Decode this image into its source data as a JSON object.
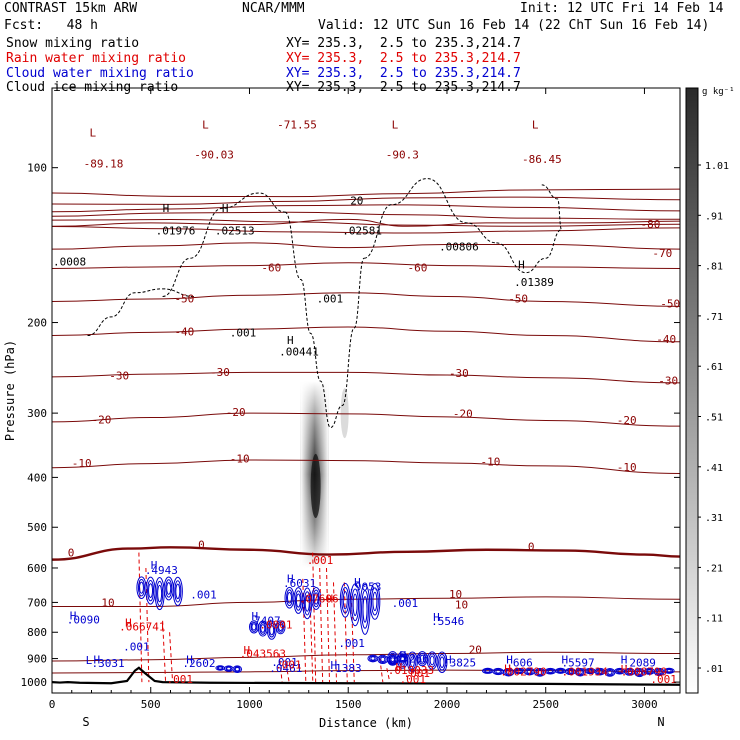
{
  "header": {
    "model": "CONTRAST 15km ARW",
    "org": "NCAR/MMM",
    "init": "Init: 12 UTC Fri 14 Feb 14",
    "fcst": "Fcst:   48 h",
    "valid": "Valid: 12 UTC Sun 16 Feb 14 (22 ChT Sun 16 Feb 14)"
  },
  "fields": [
    {
      "name": "Snow mixing ratio",
      "xy": "XY= 235.3,  2.5 to 235.3,214.7",
      "color": "#000000"
    },
    {
      "name": "Rain water mixing ratio",
      "xy": "XY= 235.3,  2.5 to 235.3,214.7",
      "color": "#e00000"
    },
    {
      "name": "Cloud water mixing ratio",
      "xy": "XY= 235.3,  2.5 to 235.3,214.7",
      "color": "#0000d0"
    },
    {
      "name": "Cloud ice mixing ratio",
      "xy": "XY= 235.3,  2.5 to 235.3,214.7",
      "color": "#000000"
    }
  ],
  "chart_data": {
    "type": "cross-section",
    "xlabel": "Distance (km)",
    "ylabel": "Pressure (hPa)",
    "xlim": [
      0,
      3180
    ],
    "ylim": [
      1050,
      70
    ],
    "xticks": [
      0,
      500,
      1000,
      1500,
      2000,
      2500,
      3000
    ],
    "yticks": [
      100,
      200,
      300,
      400,
      500,
      600,
      700,
      800,
      900,
      1000
    ],
    "endpoints": {
      "left": "S",
      "right": "N"
    },
    "colorbar": {
      "unit": "g kg⁻¹",
      "labels": [
        "1.01",
        ".91",
        ".81",
        ".71",
        ".61",
        ".51",
        ".41",
        ".31",
        ".21",
        ".11",
        ".01"
      ]
    },
    "isotherms": [
      {
        "label": "-80",
        "x": [
          0,
          500,
          1000,
          1500,
          1800,
          2200,
          2700,
          3180
        ],
        "p": [
          130,
          128,
          129,
          126,
          130,
          128,
          128,
          127
        ]
      },
      {
        "label": "-70",
        "x": [
          0,
          500,
          1000,
          1500,
          2000,
          2500,
          3180
        ],
        "p": [
          144,
          142,
          140,
          143,
          141,
          141,
          144
        ]
      },
      {
        "label": "-60",
        "x": [
          0,
          500,
          1000,
          1500,
          2000,
          2500,
          3180
        ],
        "p": [
          157,
          156,
          155,
          153,
          155,
          156,
          157
        ]
      },
      {
        "label": "-50",
        "x": [
          0,
          500,
          1000,
          1500,
          2000,
          2500,
          3180
        ],
        "p": [
          182,
          180,
          177,
          175,
          178,
          182,
          186
        ]
      },
      {
        "label": "-40",
        "x": [
          0,
          500,
          1000,
          1500,
          2000,
          2500,
          3180
        ],
        "p": [
          212,
          209,
          206,
          204,
          208,
          212,
          218
        ]
      },
      {
        "label": "-30",
        "x": [
          0,
          500,
          1000,
          1500,
          2000,
          2500,
          3180
        ],
        "p": [
          255,
          252,
          250,
          250,
          253,
          256,
          262
        ]
      },
      {
        "label": "-20",
        "x": [
          0,
          500,
          1000,
          1500,
          2000,
          2500,
          3180
        ],
        "p": [
          312,
          306,
          300,
          301,
          305,
          310,
          318
        ]
      },
      {
        "label": "-10",
        "x": [
          0,
          500,
          1000,
          1500,
          2000,
          2500,
          3180
        ],
        "p": [
          383,
          376,
          370,
          371,
          375,
          380,
          393
        ]
      },
      {
        "label": "0",
        "x": [
          0,
          400,
          600,
          1000,
          1400,
          1800,
          2200,
          2600,
          3000,
          3180
        ],
        "p": [
          578,
          550,
          547,
          553,
          565,
          558,
          553,
          555,
          565,
          570
        ]
      },
      {
        "label": "10",
        "x": [
          0,
          500,
          1000,
          1500,
          2000,
          2500,
          3180
        ],
        "p": [
          713,
          713,
          700,
          690,
          687,
          683,
          690
        ]
      },
      {
        "label": "20",
        "x": [
          0,
          500,
          1000,
          1500,
          2000,
          2500,
          3180
        ],
        "p": [
          910,
          905,
          895,
          885,
          880,
          875,
          880
        ]
      },
      {
        "label": "",
        "x": [
          0,
          500,
          1000,
          1500,
          2000,
          2500,
          3180
        ],
        "p": [
          960,
          958,
          955,
          950,
          948,
          950,
          955
        ]
      }
    ],
    "cloud_ice_contours": [
      {
        "x": [
          180,
          300,
          420,
          560,
          720
        ],
        "p": [
          212,
          195,
          175,
          172,
          178
        ]
      },
      {
        "x": [
          560,
          700,
          860,
          1050,
          1180
        ],
        "p": [
          178,
          150,
          120,
          112,
          122
        ]
      },
      {
        "x": [
          1180,
          1260,
          1310,
          1360,
          1410,
          1470,
          1530,
          1580
        ],
        "p": [
          122,
          165,
          210,
          260,
          320,
          290,
          205,
          150
        ]
      },
      {
        "x": [
          1580,
          1720,
          1900,
          2100,
          2250
        ],
        "p": [
          150,
          118,
          105,
          128,
          140
        ]
      },
      {
        "x": [
          2250,
          2400,
          2500,
          2580,
          2560,
          2480
        ],
        "p": [
          140,
          160,
          150,
          132,
          115,
          108
        ]
      }
    ],
    "cloud_water_clusters": [
      {
        "xmin": 430,
        "xmax": 660,
        "ptop": 610,
        "pbot": 730
      },
      {
        "xmin": 1000,
        "xmax": 1180,
        "ptop": 750,
        "pbot": 830
      },
      {
        "xmin": 1180,
        "xmax": 1360,
        "ptop": 640,
        "pbot": 760
      },
      {
        "xmin": 1460,
        "xmax": 1660,
        "ptop": 620,
        "pbot": 820
      },
      {
        "xmin": 1700,
        "xmax": 2000,
        "ptop": 860,
        "pbot": 960
      },
      {
        "xmin": 2180,
        "xmax": 2550,
        "ptop": 935,
        "pbot": 975
      },
      {
        "xmin": 2550,
        "xmax": 3150,
        "ptop": 935,
        "pbot": 975
      },
      {
        "xmin": 1600,
        "xmax": 1800,
        "ptop": 880,
        "pbot": 930
      },
      {
        "xmin": 830,
        "xmax": 960,
        "ptop": 925,
        "pbot": 960
      }
    ],
    "rain_shafts": [
      {
        "x": 440,
        "ptop": 560,
        "pbot": 1000
      },
      {
        "x": 560,
        "ptop": 760,
        "pbot": 1000
      },
      {
        "x": 1150,
        "ptop": 880,
        "pbot": 1000
      },
      {
        "x": 1270,
        "ptop": 630,
        "pbot": 1000
      },
      {
        "x": 1320,
        "ptop": 560,
        "pbot": 1000
      },
      {
        "x": 1390,
        "ptop": 600,
        "pbot": 1000
      },
      {
        "x": 1480,
        "ptop": 640,
        "pbot": 1000
      },
      {
        "x": 1660,
        "ptop": 900,
        "pbot": 1000
      }
    ],
    "snow_column": {
      "x": 1330,
      "ptop": 260,
      "pbot": 600,
      "peak": [
        360,
        480
      ]
    },
    "terrain": {
      "x": [
        0,
        40,
        80,
        140,
        300,
        380,
        420,
        440,
        470,
        520,
        560,
        800,
        1500,
        2500,
        3180
      ],
      "p": [
        1000,
        1002,
        1000,
        1003,
        1005,
        995,
        950,
        938,
        960,
        995,
        1000,
        1003,
        1005,
        1008,
        1012
      ]
    },
    "annotations": [
      {
        "text": "L",
        "x": 190,
        "p": 87,
        "color": "#8b0000"
      },
      {
        "text": "-89.18",
        "x": 160,
        "p": 100,
        "color": "#8b0000"
      },
      {
        "text": "L",
        "x": 760,
        "p": 84,
        "color": "#8b0000"
      },
      {
        "text": "-90.03",
        "x": 720,
        "p": 96,
        "color": "#8b0000"
      },
      {
        "text": "-71.55",
        "x": 1140,
        "p": 84,
        "color": "#8b0000"
      },
      {
        "text": "L",
        "x": 1720,
        "p": 84,
        "color": "#8b0000"
      },
      {
        "text": "-90.3",
        "x": 1690,
        "p": 96,
        "color": "#8b0000"
      },
      {
        "text": "L",
        "x": 2430,
        "p": 84,
        "color": "#8b0000"
      },
      {
        "text": "-86.45",
        "x": 2380,
        "p": 98,
        "color": "#8b0000"
      },
      {
        "text": "H",
        "x": 560,
        "p": 122,
        "color": "#000000"
      },
      {
        "text": ".01976",
        "x": 525,
        "p": 135,
        "color": "#000000"
      },
      {
        "text": "H",
        "x": 860,
        "p": 122,
        "color": "#000000"
      },
      {
        "text": ".02513",
        "x": 825,
        "p": 135,
        "color": "#000000"
      },
      {
        "text": "20",
        "x": 1510,
        "p": 118,
        "color": "#000000"
      },
      {
        "text": ".02581",
        "x": 1470,
        "p": 135,
        "color": "#000000"
      },
      {
        "text": ".00806",
        "x": 1960,
        "p": 145,
        "color": "#000000"
      },
      {
        "text": "H",
        "x": 2360,
        "p": 157,
        "color": "#000000"
      },
      {
        "text": ".01389",
        "x": 2340,
        "p": 170,
        "color": "#000000"
      },
      {
        "text": ".0008",
        "x": 5,
        "p": 155,
        "color": "#000000"
      },
      {
        "text": ".001",
        "x": 1340,
        "p": 183,
        "color": "#000000"
      },
      {
        "text": ".001",
        "x": 900,
        "p": 213,
        "color": "#000000"
      },
      {
        "text": "H",
        "x": 1190,
        "p": 220,
        "color": "#000000"
      },
      {
        "text": ".00441",
        "x": 1150,
        "p": 232,
        "color": "#000000"
      },
      {
        "text": "-80",
        "x": 2980,
        "p": 131,
        "color": "#8b0000"
      },
      {
        "text": "-70",
        "x": 3040,
        "p": 149,
        "color": "#8b0000"
      },
      {
        "text": "-60",
        "x": 1060,
        "p": 159,
        "color": "#8b0000"
      },
      {
        "text": "-60",
        "x": 1800,
        "p": 159,
        "color": "#8b0000"
      },
      {
        "text": "-50",
        "x": 620,
        "p": 183,
        "color": "#8b0000"
      },
      {
        "text": "-50",
        "x": 2310,
        "p": 183,
        "color": "#8b0000"
      },
      {
        "text": "-50",
        "x": 3080,
        "p": 187,
        "color": "#8b0000"
      },
      {
        "text": "-40",
        "x": 620,
        "p": 212,
        "color": "#8b0000"
      },
      {
        "text": "-40",
        "x": 3060,
        "p": 219,
        "color": "#8b0000"
      },
      {
        "text": "-30",
        "x": 290,
        "p": 258,
        "color": "#8b0000"
      },
      {
        "text": "-30",
        "x": 800,
        "p": 254,
        "color": "#8b0000"
      },
      {
        "text": "-30",
        "x": 2010,
        "p": 255,
        "color": "#8b0000"
      },
      {
        "text": "-30",
        "x": 3070,
        "p": 264,
        "color": "#8b0000"
      },
      {
        "text": "-20",
        "x": 200,
        "p": 314,
        "color": "#8b0000"
      },
      {
        "text": "-20",
        "x": 880,
        "p": 304,
        "color": "#8b0000"
      },
      {
        "text": "-20",
        "x": 2030,
        "p": 306,
        "color": "#8b0000"
      },
      {
        "text": "-20",
        "x": 2860,
        "p": 315,
        "color": "#8b0000"
      },
      {
        "text": "-10",
        "x": 100,
        "p": 382,
        "color": "#8b0000"
      },
      {
        "text": "-10",
        "x": 900,
        "p": 374,
        "color": "#8b0000"
      },
      {
        "text": "-10",
        "x": 2170,
        "p": 379,
        "color": "#8b0000"
      },
      {
        "text": "-10",
        "x": 2860,
        "p": 389,
        "color": "#8b0000"
      },
      {
        "text": "0",
        "x": 80,
        "p": 570,
        "color": "#8b0000"
      },
      {
        "text": "0",
        "x": 740,
        "p": 550,
        "color": "#8b0000"
      },
      {
        "text": "0",
        "x": 2410,
        "p": 555,
        "color": "#8b0000"
      },
      {
        "text": "10",
        "x": 250,
        "p": 713,
        "color": "#8b0000"
      },
      {
        "text": "10",
        "x": 2010,
        "p": 687,
        "color": "#8b0000"
      },
      {
        "text": "10",
        "x": 2040,
        "p": 720,
        "color": "#8b0000"
      },
      {
        "text": "20",
        "x": 2110,
        "p": 880,
        "color": "#8b0000"
      },
      {
        "text": "H",
        "x": 90,
        "p": 755,
        "color": "#0000d0"
      },
      {
        "text": ".0090",
        "x": 75,
        "p": 770,
        "color": "#0000d0"
      },
      {
        "text": "H",
        "x": 500,
        "p": 603,
        "color": "#0000d0"
      },
      {
        "text": ".4943",
        "x": 470,
        "p": 617,
        "color": "#0000d0"
      },
      {
        "text": ".001",
        "x": 700,
        "p": 688,
        "color": "#0000d0"
      },
      {
        "text": ".001",
        "x": 360,
        "p": 868,
        "color": "#0000d0"
      },
      {
        "text": "H",
        "x": 1190,
        "p": 640,
        "color": "#0000d0"
      },
      {
        "text": ".6031",
        "x": 1170,
        "p": 653,
        "color": "#0000d0"
      },
      {
        "text": "H",
        "x": 1010,
        "p": 758,
        "color": "#0000d0"
      },
      {
        "text": ".7407",
        "x": 990,
        "p": 772,
        "color": "#0000d0"
      },
      {
        "text": "H",
        "x": 1530,
        "p": 650,
        "color": "#0000d0"
      },
      {
        "text": ".9053",
        "x": 1500,
        "p": 663,
        "color": "#0000d0"
      },
      {
        "text": ".001",
        "x": 1720,
        "p": 715,
        "color": "#0000d0"
      },
      {
        "text": ".001",
        "x": 1450,
        "p": 855,
        "color": "#0000d0"
      },
      {
        "text": "H",
        "x": 1930,
        "p": 760,
        "color": "#0000d0"
      },
      {
        "text": ".5546",
        "x": 1920,
        "p": 775,
        "color": "#0000d0"
      },
      {
        "text": "H",
        "x": 1760,
        "p": 902,
        "color": "#0000d0"
      },
      {
        "text": ".7266",
        "x": 1740,
        "p": 916,
        "color": "#0000d0"
      },
      {
        "text": "H",
        "x": 1990,
        "p": 920,
        "color": "#0000d0"
      },
      {
        "text": ".3825",
        "x": 1980,
        "p": 933,
        "color": "#0000d0"
      },
      {
        "text": "H",
        "x": 2300,
        "p": 920,
        "color": "#0000d0"
      },
      {
        "text": ".606",
        "x": 2300,
        "p": 933,
        "color": "#0000d0"
      },
      {
        "text": "H",
        "x": 2580,
        "p": 920,
        "color": "#0000d0"
      },
      {
        "text": ".5597",
        "x": 2580,
        "p": 933,
        "color": "#0000d0"
      },
      {
        "text": "H",
        "x": 2880,
        "p": 920,
        "color": "#0000d0"
      },
      {
        "text": ".2089",
        "x": 2890,
        "p": 933,
        "color": "#0000d0"
      },
      {
        "text": "H",
        "x": 210,
        "p": 920,
        "color": "#0000d0"
      },
      {
        "text": ".3031",
        "x": 200,
        "p": 935,
        "color": "#0000d0"
      },
      {
        "text": "H",
        "x": 680,
        "p": 920,
        "color": "#0000d0"
      },
      {
        "text": ".2602",
        "x": 660,
        "p": 935,
        "color": "#0000d0"
      },
      {
        "text": ".001",
        "x": 1110,
        "p": 930,
        "color": "#0000d0"
      },
      {
        "text": ".0461",
        "x": 1100,
        "p": 955,
        "color": "#0000d0"
      },
      {
        "text": "H",
        "x": 1410,
        "p": 942,
        "color": "#0000d0"
      },
      {
        "text": ".1383",
        "x": 1400,
        "p": 955,
        "color": "#0000d0"
      },
      {
        "text": "L",
        "x": 170,
        "p": 922,
        "color": "#0000d0"
      },
      {
        "text": "H",
        "x": 370,
        "p": 780,
        "color": "#e00000"
      },
      {
        "text": ".066741",
        "x": 340,
        "p": 793,
        "color": "#e00000"
      },
      {
        "text": ".0001",
        "x": 1050,
        "p": 787,
        "color": "#e00000"
      },
      {
        "text": ".07606",
        "x": 1250,
        "p": 700,
        "color": "#e00000"
      },
      {
        "text": "H",
        "x": 1390,
        "p": 700,
        "color": "#e00000"
      },
      {
        "text": "H",
        "x": 970,
        "p": 882,
        "color": "#e00000"
      },
      {
        "text": ".043563",
        "x": 950,
        "p": 895,
        "color": "#e00000"
      },
      {
        "text": ".001",
        "x": 1130,
        "p": 940,
        "color": "#e00000"
      },
      {
        "text": "H",
        "x": 1740,
        "p": 952,
        "color": "#e00000"
      },
      {
        "text": ".018033",
        "x": 1700,
        "p": 965,
        "color": "#e00000"
      },
      {
        "text": ".001",
        "x": 1780,
        "p": 978,
        "color": "#e00000"
      },
      {
        "text": "H",
        "x": 2290,
        "p": 957,
        "color": "#e00000"
      },
      {
        "text": ".002790",
        "x": 2270,
        "p": 970,
        "color": "#e00000"
      },
      {
        "text": ".001934",
        "x": 2580,
        "p": 970,
        "color": "#e00000"
      },
      {
        "text": "H",
        "x": 2880,
        "p": 960,
        "color": "#e00000"
      },
      {
        "text": ".008799",
        "x": 2880,
        "p": 970,
        "color": "#e00000"
      },
      {
        "text": ".001",
        "x": 1760,
        "p": 1003,
        "color": "#e00000"
      },
      {
        "text": ".001",
        "x": 580,
        "p": 1003,
        "color": "#e00000"
      },
      {
        "text": ".001",
        "x": 3030,
        "p": 1005,
        "color": "#e00000"
      },
      {
        "text": ".001",
        "x": 1290,
        "p": 590,
        "color": "#e00000"
      }
    ]
  }
}
